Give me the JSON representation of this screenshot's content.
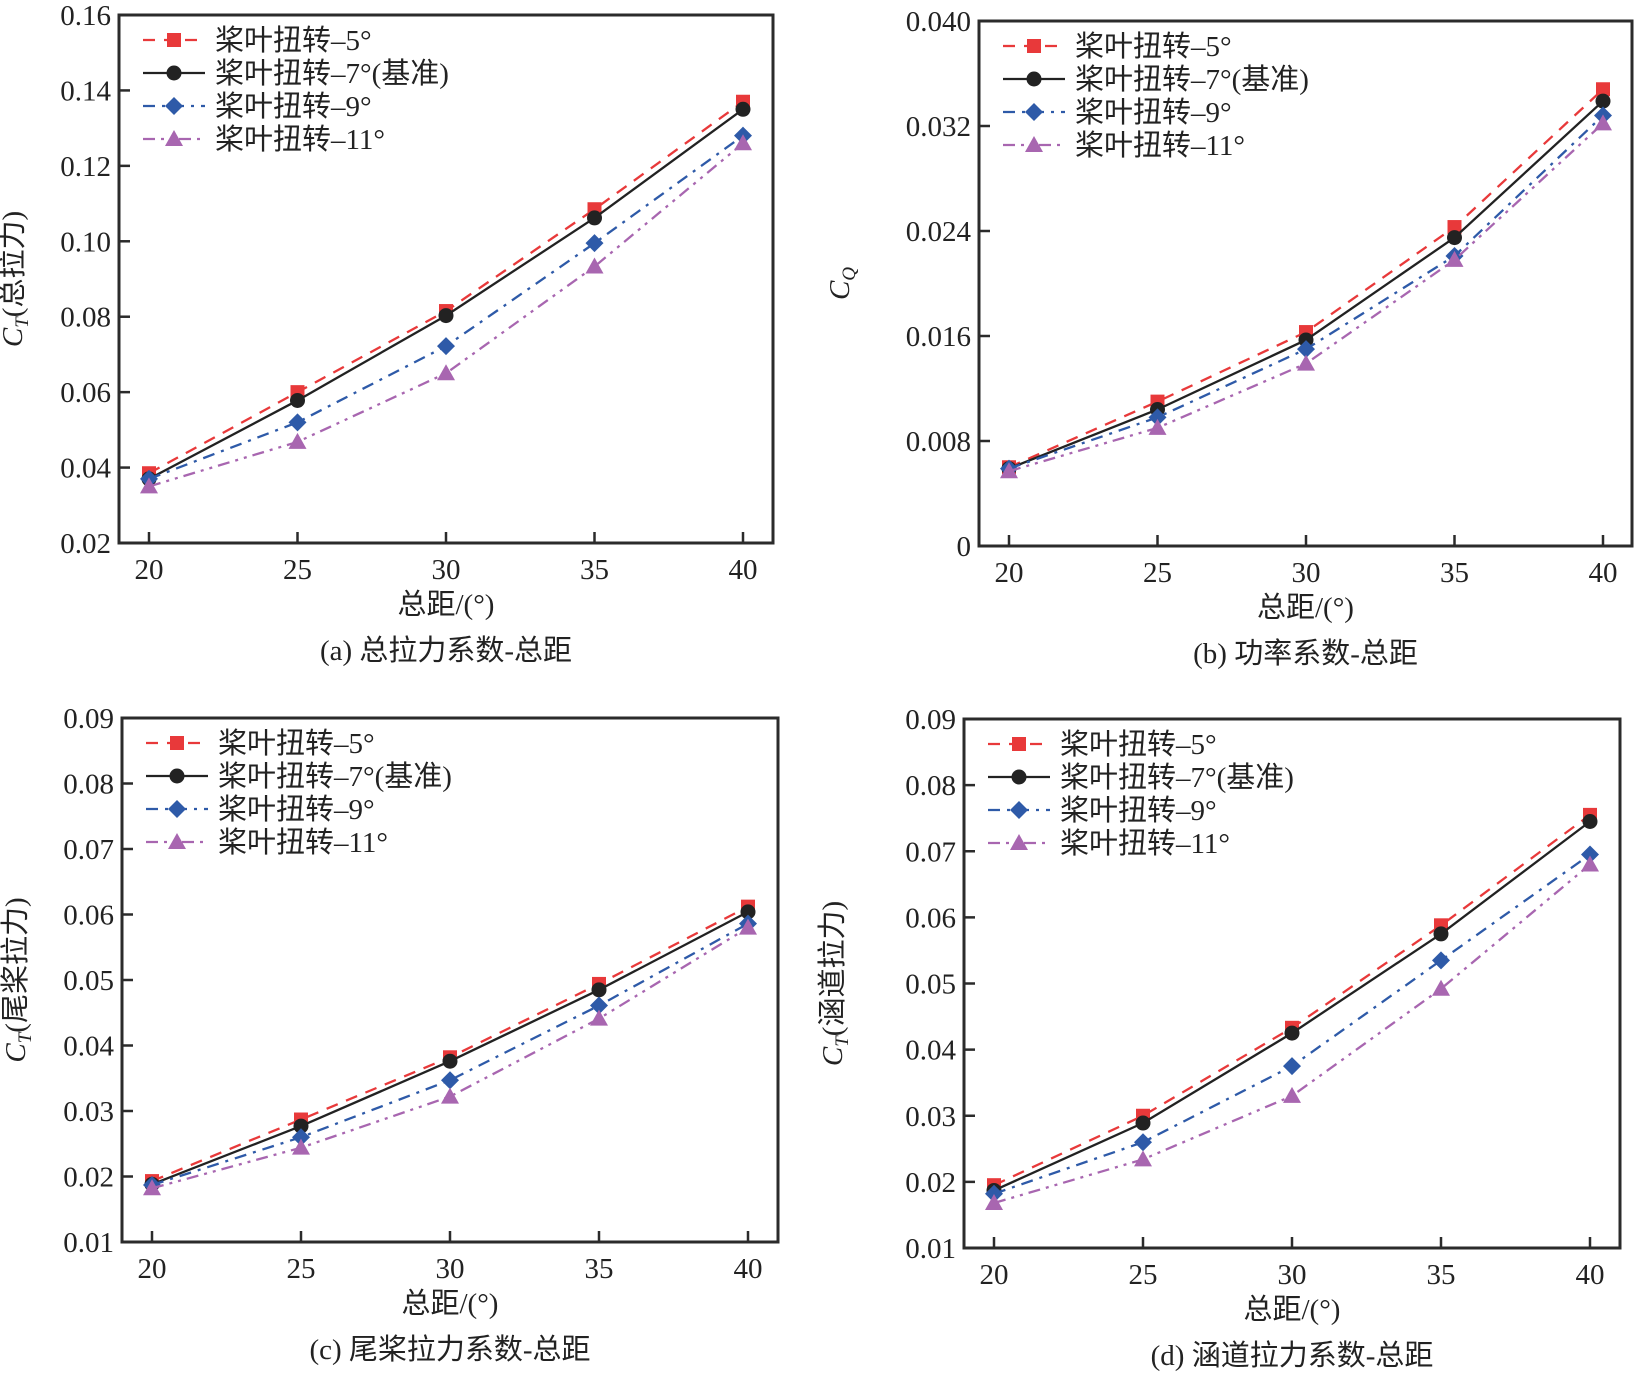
{
  "chart_data": [
    {
      "id": "a",
      "type": "line",
      "caption": "(a) 总拉力系数-总距",
      "xlabel": "总距/(°)",
      "ylabel_main": "C",
      "ylabel_sub": "T",
      "ylabel_rest": "(总拉力)",
      "xlim": [
        20,
        40
      ],
      "ylim": [
        0.02,
        0.16
      ],
      "xticks": [
        "20",
        "25",
        "30",
        "35",
        "40"
      ],
      "xtick_values": [
        20,
        25,
        30,
        35,
        40
      ],
      "yticks": [
        "0.02",
        "0.04",
        "0.06",
        "0.08",
        "0.10",
        "0.12",
        "0.14",
        "0.16"
      ],
      "ytick_values": [
        0.02,
        0.04,
        0.06,
        0.08,
        0.1,
        0.12,
        0.14,
        0.16
      ],
      "legend_position": "top-left",
      "x": [
        20,
        25,
        30,
        35,
        40
      ],
      "series": [
        {
          "name": "桨叶扭转–5°",
          "values": [
            0.0385,
            0.06,
            0.0815,
            0.1085,
            0.137
          ]
        },
        {
          "name": "桨叶扭转–7°(基准)",
          "values": [
            0.037,
            0.0578,
            0.0803,
            0.1062,
            0.135
          ]
        },
        {
          "name": "桨叶扭转–9°",
          "values": [
            0.037,
            0.052,
            0.0722,
            0.0995,
            0.128
          ]
        },
        {
          "name": "桨叶扭转–11°",
          "values": [
            0.035,
            0.0468,
            0.065,
            0.0933,
            0.126
          ]
        }
      ]
    },
    {
      "id": "b",
      "type": "line",
      "caption": "(b) 功率系数-总距",
      "xlabel": "总距/(°)",
      "ylabel_main": "C",
      "ylabel_sub": "Q",
      "ylabel_rest": "",
      "xlim": [
        20,
        40
      ],
      "ylim": [
        0,
        0.04
      ],
      "xticks": [
        "20",
        "25",
        "30",
        "35",
        "40"
      ],
      "xtick_values": [
        20,
        25,
        30,
        35,
        40
      ],
      "yticks": [
        "0",
        "0.008",
        "0.016",
        "0.024",
        "0.032",
        "0.040"
      ],
      "ytick_values": [
        0,
        0.008,
        0.016,
        0.024,
        0.032,
        0.04
      ],
      "legend_position": "top-left",
      "x": [
        20,
        25,
        30,
        35,
        40
      ],
      "series": [
        {
          "name": "桨叶扭转–5°",
          "values": [
            0.006,
            0.011,
            0.0163,
            0.0243,
            0.0348
          ]
        },
        {
          "name": "桨叶扭转–7°(基准)",
          "values": [
            0.0059,
            0.0104,
            0.0157,
            0.0235,
            0.0339
          ]
        },
        {
          "name": "桨叶扭转–9°",
          "values": [
            0.0059,
            0.0098,
            0.015,
            0.0221,
            0.0328
          ]
        },
        {
          "name": "桨叶扭转–11°",
          "values": [
            0.0057,
            0.009,
            0.0139,
            0.0218,
            0.0322
          ]
        }
      ]
    },
    {
      "id": "c",
      "type": "line",
      "caption": "(c) 尾桨拉力系数-总距",
      "xlabel": "总距/(°)",
      "ylabel_main": "C",
      "ylabel_sub": "T",
      "ylabel_rest": "(尾桨拉力)",
      "xlim": [
        20,
        40
      ],
      "ylim": [
        0.01,
        0.09
      ],
      "xticks": [
        "20",
        "25",
        "30",
        "35",
        "40"
      ],
      "xtick_values": [
        20,
        25,
        30,
        35,
        40
      ],
      "yticks": [
        "0.01",
        "0.02",
        "0.03",
        "0.04",
        "0.05",
        "0.06",
        "0.07",
        "0.08",
        "0.09"
      ],
      "ytick_values": [
        0.01,
        0.02,
        0.03,
        0.04,
        0.05,
        0.06,
        0.07,
        0.08,
        0.09
      ],
      "legend_position": "top-left",
      "x": [
        20,
        25,
        30,
        35,
        40
      ],
      "series": [
        {
          "name": "桨叶扭转–5°",
          "values": [
            0.0193,
            0.0287,
            0.0382,
            0.0494,
            0.0612
          ]
        },
        {
          "name": "桨叶扭转–7°(基准)",
          "values": [
            0.0188,
            0.0277,
            0.0376,
            0.0485,
            0.0604
          ]
        },
        {
          "name": "桨叶扭转–9°",
          "values": [
            0.0187,
            0.026,
            0.0347,
            0.0461,
            0.0586
          ]
        },
        {
          "name": "桨叶扭转–11°",
          "values": [
            0.0182,
            0.0244,
            0.0322,
            0.0441,
            0.058
          ]
        }
      ]
    },
    {
      "id": "d",
      "type": "line",
      "caption": "(d) 涵道拉力系数-总距",
      "xlabel": "总距/(°)",
      "ylabel_main": "C",
      "ylabel_sub": "T",
      "ylabel_rest": "(涵道拉力)",
      "xlim": [
        20,
        40
      ],
      "ylim": [
        0.01,
        0.09
      ],
      "xticks": [
        "20",
        "25",
        "30",
        "35",
        "40"
      ],
      "xtick_values": [
        20,
        25,
        30,
        35,
        40
      ],
      "yticks": [
        "0.01",
        "0.02",
        "0.03",
        "0.04",
        "0.05",
        "0.06",
        "0.07",
        "0.08",
        "0.09"
      ],
      "ytick_values": [
        0.01,
        0.02,
        0.03,
        0.04,
        0.05,
        0.06,
        0.07,
        0.08,
        0.09
      ],
      "legend_position": "top-left",
      "x": [
        20,
        25,
        30,
        35,
        40
      ],
      "series": [
        {
          "name": "桨叶扭转–5°",
          "values": [
            0.0195,
            0.03,
            0.0433,
            0.0588,
            0.0755
          ]
        },
        {
          "name": "桨叶扭转–7°(基准)",
          "values": [
            0.0187,
            0.0289,
            0.0425,
            0.0575,
            0.0745
          ]
        },
        {
          "name": "桨叶扭转–9°",
          "values": [
            0.0182,
            0.026,
            0.0375,
            0.0535,
            0.0695
          ]
        },
        {
          "name": "桨叶扭转–11°",
          "values": [
            0.0168,
            0.0234,
            0.033,
            0.0492,
            0.068
          ]
        }
      ]
    }
  ],
  "series_styles": [
    {
      "color": "#e8393a",
      "marker": "square",
      "dash": "dashed"
    },
    {
      "color": "#222222",
      "marker": "circle",
      "dash": "solid"
    },
    {
      "color": "#2e5aa8",
      "marker": "diamond",
      "dash": "dash-dot"
    },
    {
      "color": "#a866b0",
      "marker": "triangle",
      "dash": "dash-dot-dot"
    }
  ]
}
